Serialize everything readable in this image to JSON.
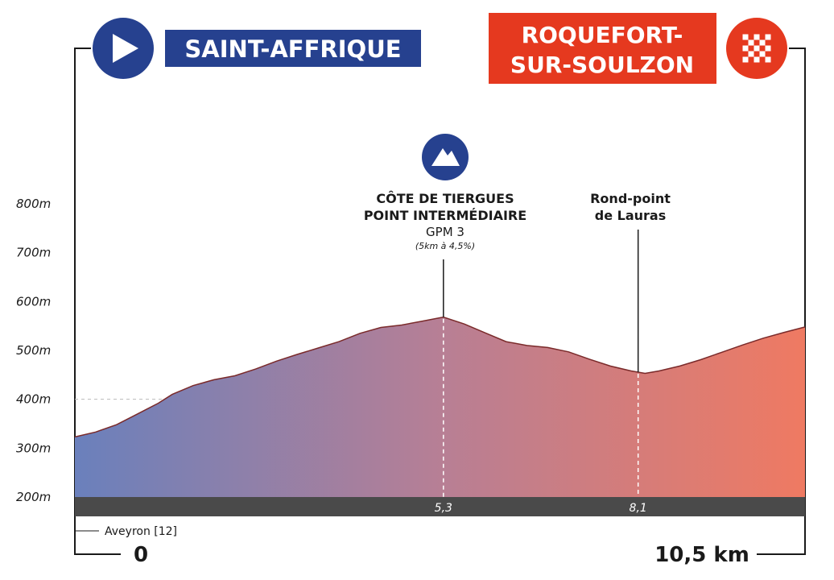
{
  "start": {
    "city": "SAINT-AFFRIQUE",
    "color": "#26418f"
  },
  "finish": {
    "city_lines": [
      "ROQUEFORT-",
      "SUR-SOULZON"
    ],
    "color": "#e5391f"
  },
  "department": "Aveyron [12]",
  "distance_labels": {
    "start": "0",
    "end": "10,5 km"
  },
  "climb": {
    "name_lines": [
      "CÔTE DE TIERGUES",
      "POINT INTERMÉDIAIRE"
    ],
    "category": "GPM 3",
    "details": "(5km à 4,5%)",
    "km": 5.3,
    "km_label": "5,3",
    "icon": "mountain-icon"
  },
  "waypoint": {
    "name_lines": [
      "Rond-point",
      "de Lauras"
    ],
    "km": 8.1,
    "km_label": "8,1"
  },
  "colors": {
    "gradient_start": "#6a80bc",
    "gradient_mid": "#b77f95",
    "gradient_end": "#ef7a62",
    "bar": "#4a4a4a",
    "outline": "#7a2a2a"
  },
  "chart_data": {
    "type": "area",
    "xlabel": "",
    "ylabel": "",
    "xlim": [
      0,
      10.5
    ],
    "ylim": [
      200,
      800
    ],
    "yticks": [
      200,
      300,
      400,
      500,
      600,
      700,
      800
    ],
    "ytick_labels": [
      "200m",
      "300m",
      "400m",
      "500m",
      "600m",
      "700m",
      "800m"
    ],
    "grid": "dashed at 300m and 400m",
    "x": [
      0,
      0.3,
      0.6,
      0.9,
      1.2,
      1.4,
      1.7,
      2.0,
      2.3,
      2.6,
      2.9,
      3.2,
      3.5,
      3.8,
      4.1,
      4.4,
      4.7,
      5.0,
      5.3,
      5.6,
      5.9,
      6.2,
      6.5,
      6.8,
      7.1,
      7.4,
      7.7,
      8.0,
      8.2,
      8.4,
      8.7,
      9.0,
      9.3,
      9.6,
      9.9,
      10.2,
      10.5
    ],
    "elevation": [
      323,
      333,
      348,
      370,
      392,
      410,
      428,
      440,
      448,
      462,
      478,
      492,
      505,
      518,
      535,
      547,
      552,
      560,
      568,
      554,
      536,
      518,
      510,
      506,
      497,
      482,
      468,
      458,
      453,
      458,
      468,
      481,
      496,
      511,
      525,
      537,
      548
    ]
  }
}
